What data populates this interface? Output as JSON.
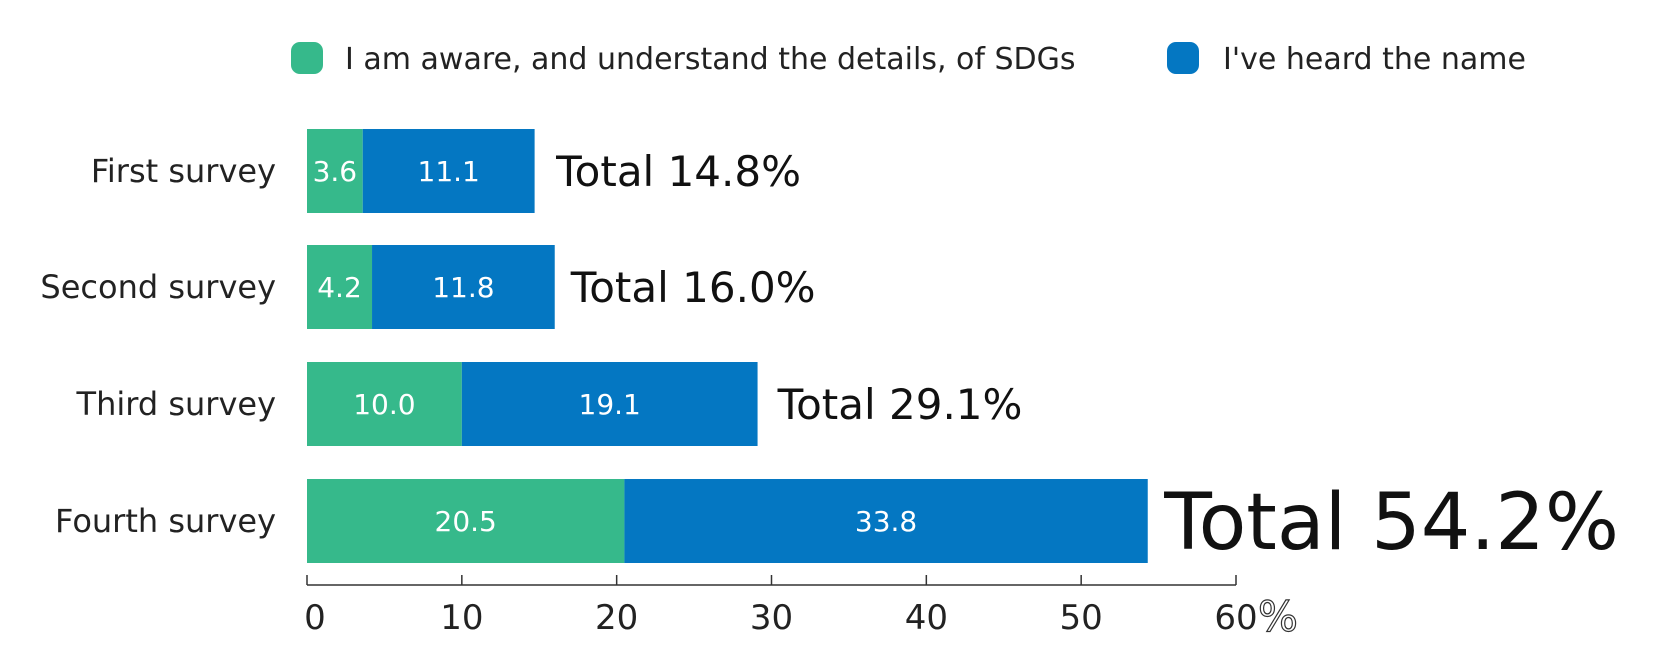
{
  "chart_data": {
    "type": "bar",
    "orientation": "horizontal",
    "stacked": true,
    "categories": [
      "First survey",
      "Second survey",
      "Third survey",
      "Fourth survey"
    ],
    "series": [
      {
        "name": "I am aware, and understand the details, of SDGs",
        "color": "#36b98b",
        "values": [
          3.6,
          4.2,
          10.0,
          20.5
        ],
        "labels": [
          "3.6",
          "4.2",
          "10.0",
          "20.5"
        ]
      },
      {
        "name": "I've heard the name",
        "color": "#0477c2",
        "values": [
          11.1,
          11.8,
          19.1,
          33.8
        ],
        "labels": [
          "11.1",
          "11.8",
          "19.1",
          "33.8"
        ]
      }
    ],
    "totals": [
      14.8,
      16.0,
      29.1,
      54.2
    ],
    "total_labels": [
      "Total 14.8%",
      "Total 16.0%",
      "Total 29.1%",
      "Total 54.2%"
    ],
    "xlim": [
      0,
      60
    ],
    "xticks": [
      0,
      10,
      20,
      30,
      40,
      50,
      60
    ],
    "xtick_labels": [
      "0",
      "10",
      "20",
      "30",
      "40",
      "50",
      "60"
    ],
    "unit_label": "%",
    "legend_position": "top",
    "grid": false
  }
}
